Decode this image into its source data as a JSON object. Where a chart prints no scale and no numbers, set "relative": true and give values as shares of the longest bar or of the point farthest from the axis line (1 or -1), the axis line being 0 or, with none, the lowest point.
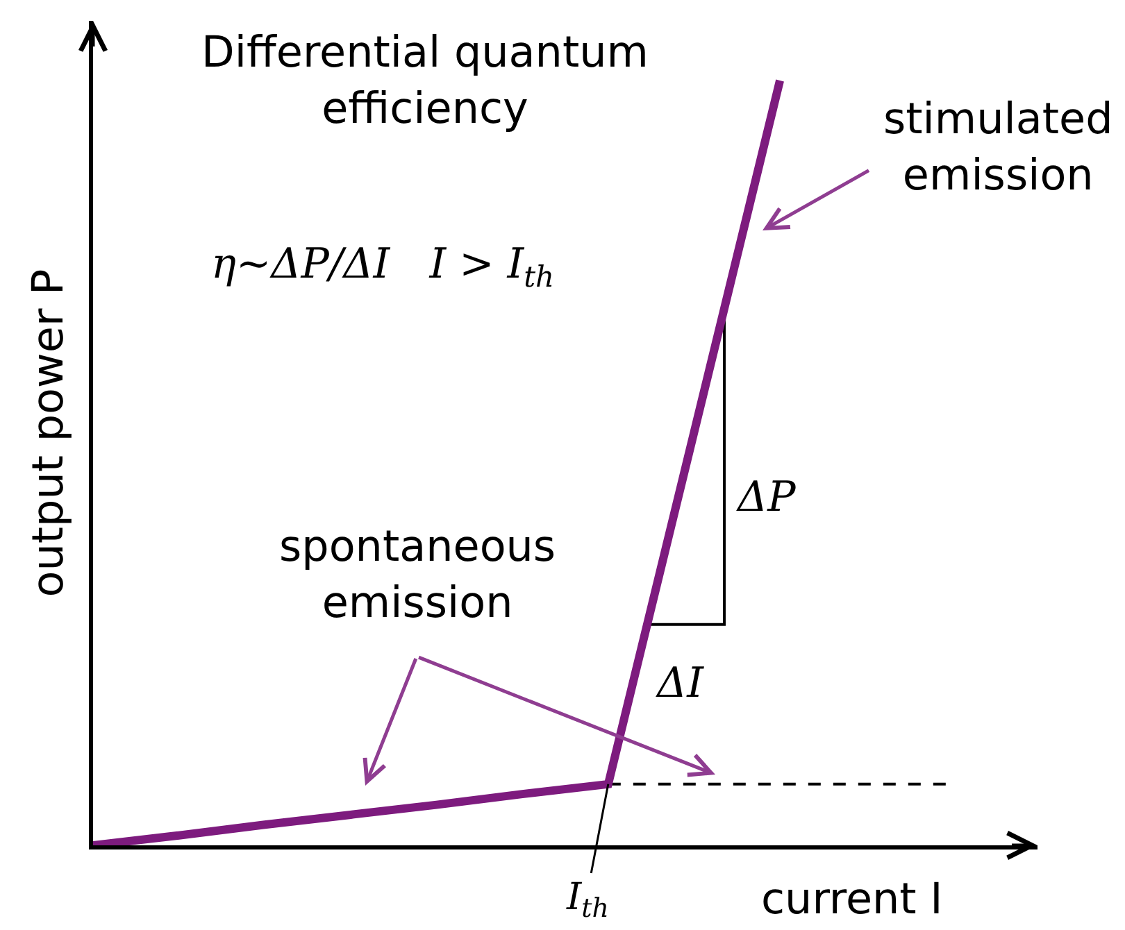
{
  "chart_data": {
    "type": "line",
    "title": "Differential quantum efficiency",
    "xlabel": "current I",
    "ylabel": "output power P",
    "relative": true,
    "categories": [
      null,
      null,
      null,
      null,
      null,
      null,
      null,
      null,
      null,
      null,
      null,
      null
    ],
    "series": [
      {
        "color": "#7d1b7e",
        "values": [
          0,
          0.013,
          0.027,
          0.04,
          0.053,
          0.067,
          0.08,
          0.54,
          1,
          null,
          null,
          null
        ]
      }
    ],
    "ref_lines": [
      {
        "axis": "y",
        "value": 0.08,
        "color": "#000000",
        "line_style": "dashed"
      }
    ],
    "annotations": [
      "η~ΔP/ΔI   I > I$_{th}$",
      "stimulated emission",
      "spontaneous emission",
      "ΔP",
      "ΔI",
      "I$_{th}$"
    ]
  }
}
